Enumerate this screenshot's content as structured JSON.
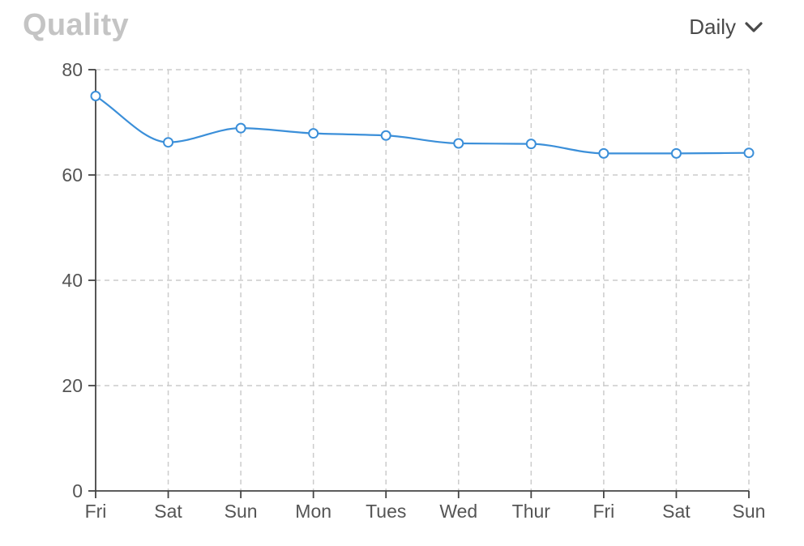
{
  "header": {
    "title": "Quality",
    "range_selector": {
      "selected": "Daily",
      "icon": "chevron-down-icon"
    }
  },
  "colors": {
    "line": "#3b8fd9",
    "point_fill": "#ffffff",
    "grid": "#cccccc",
    "axis": "#444444",
    "title": "#c4c4c4",
    "tick_text": "#555555"
  },
  "chart_data": {
    "type": "line",
    "title": "",
    "xlabel": "",
    "ylabel": "",
    "categories": [
      "Fri",
      "Sat",
      "Sun",
      "Mon",
      "Tues",
      "Wed",
      "Thur",
      "Fri",
      "Sat",
      "Sun"
    ],
    "series": [
      {
        "values": [
          75,
          66.2,
          68.9,
          67.9,
          67.5,
          66,
          65.9,
          64.1,
          64.1,
          64.2
        ]
      }
    ],
    "ylim": [
      0,
      80
    ],
    "yticks": [
      0,
      20,
      40,
      60,
      80
    ],
    "grid": true,
    "grid_style": "dashed",
    "curve": "smooth",
    "markers": "hollow-circle",
    "legend": "none"
  }
}
